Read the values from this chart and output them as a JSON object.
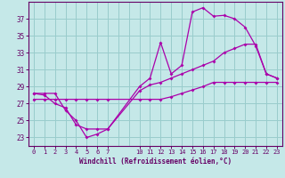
{
  "xlabel": "Windchill (Refroidissement éolien,°C)",
  "background_color": "#c5e8e8",
  "line_color": "#aa00aa",
  "grid_color": "#99cccc",
  "axis_color": "#660066",
  "tick_color": "#660066",
  "xlim": [
    -0.5,
    23.5
  ],
  "ylim": [
    22,
    39
  ],
  "xticks": [
    0,
    1,
    2,
    3,
    4,
    5,
    6,
    7,
    10,
    11,
    12,
    13,
    14,
    15,
    16,
    17,
    18,
    19,
    20,
    21,
    22,
    23
  ],
  "yticks": [
    23,
    25,
    27,
    29,
    31,
    33,
    35,
    37
  ],
  "series1_x": [
    0,
    1,
    2,
    3,
    4,
    5,
    6,
    7,
    10,
    11,
    12,
    13,
    14,
    15,
    16,
    17,
    18,
    19,
    20,
    21,
    22,
    23
  ],
  "series1_y": [
    28.2,
    28.2,
    28.2,
    26.2,
    25.0,
    23.0,
    23.4,
    24.0,
    29.0,
    30.0,
    34.2,
    30.5,
    31.5,
    37.8,
    38.3,
    37.3,
    37.4,
    37.0,
    36.0,
    33.8,
    30.5,
    30.0
  ],
  "series2_x": [
    0,
    1,
    2,
    3,
    4,
    5,
    6,
    7,
    10,
    11,
    12,
    13,
    14,
    15,
    16,
    17,
    18,
    19,
    20,
    21,
    22,
    23
  ],
  "series2_y": [
    28.2,
    28.0,
    27.0,
    26.5,
    24.5,
    24.0,
    24.0,
    24.0,
    28.5,
    29.2,
    29.5,
    30.0,
    30.5,
    31.0,
    31.5,
    32.0,
    33.0,
    33.5,
    34.0,
    34.0,
    30.5,
    30.0
  ],
  "series3_x": [
    0,
    1,
    2,
    3,
    4,
    5,
    6,
    7,
    10,
    11,
    12,
    13,
    14,
    15,
    16,
    17,
    18,
    19,
    20,
    21,
    22,
    23
  ],
  "series3_y": [
    27.5,
    27.5,
    27.5,
    27.5,
    27.5,
    27.5,
    27.5,
    27.5,
    27.5,
    27.5,
    27.5,
    27.8,
    28.2,
    28.6,
    29.0,
    29.5,
    29.5,
    29.5,
    29.5,
    29.5,
    29.5,
    29.5
  ]
}
